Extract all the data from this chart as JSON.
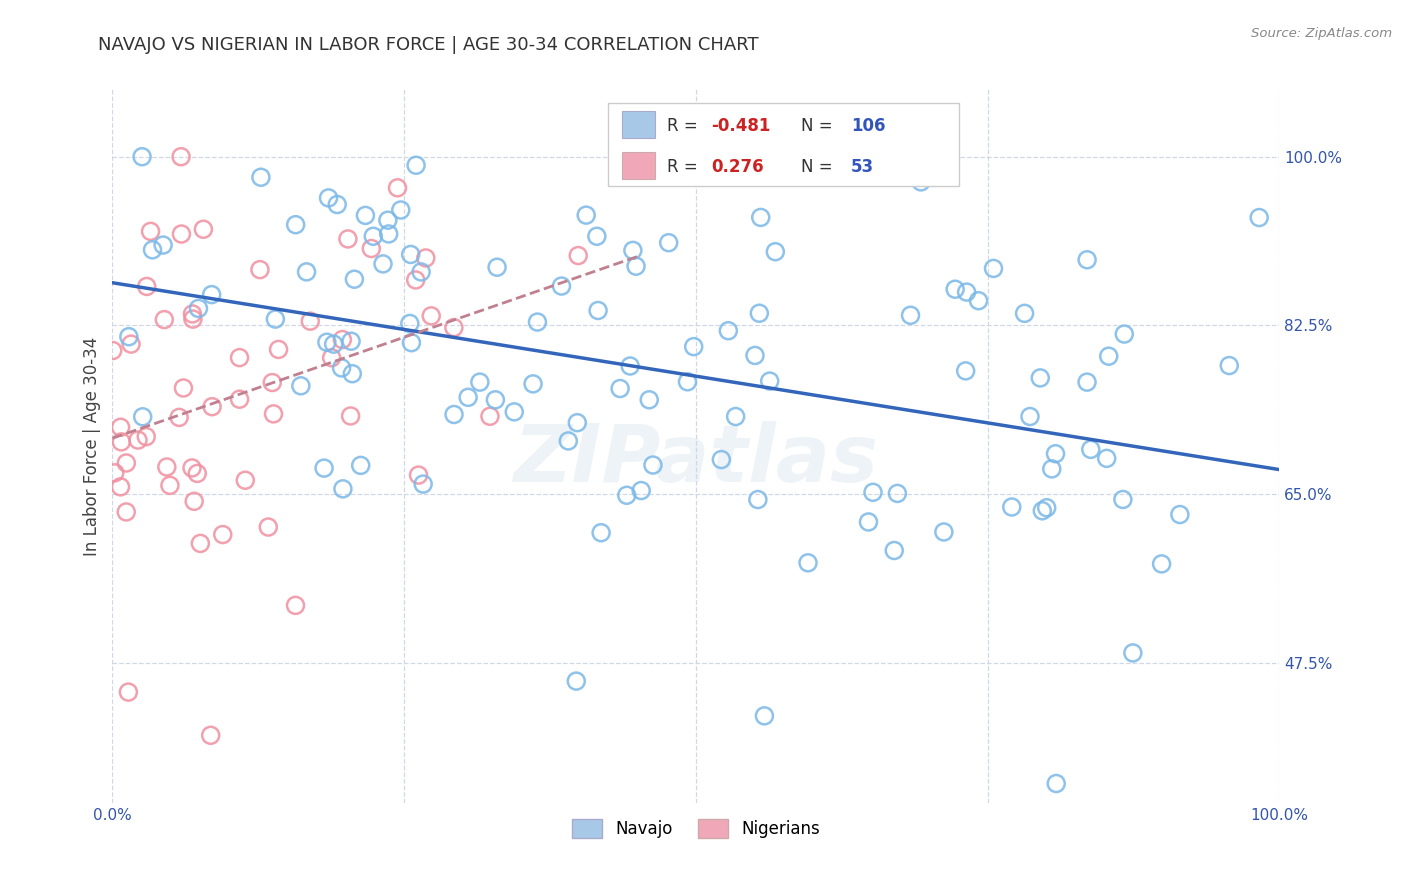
{
  "title": "NAVAJO VS NIGERIAN IN LABOR FORCE | AGE 30-34 CORRELATION CHART",
  "source_text": "Source: ZipAtlas.com",
  "ylabel": "In Labor Force | Age 30-34",
  "xlim": [
    0.0,
    1.0
  ],
  "ylim": [
    0.33,
    1.07
  ],
  "xtick_labels": [
    "0.0%",
    "100.0%"
  ],
  "ytick_labels": [
    "100.0%",
    "82.5%",
    "65.0%",
    "47.5%"
  ],
  "ytick_values": [
    1.0,
    0.825,
    0.65,
    0.475
  ],
  "background_color": "#ffffff",
  "grid_color": "#d0d8e8",
  "watermark": "ZIPatlas",
  "legend_navajo_color": "#a8c8e8",
  "legend_nigerian_color": "#f0a8b8",
  "navajo_dot_color": "#7ab8e8",
  "nigerian_dot_color": "#f090a0",
  "navajo_line_color": "#3366bb",
  "nigerian_line_color": "#cc4466",
  "navajo_R": -0.481,
  "navajo_N": 106,
  "nigerian_R": 0.276,
  "nigerian_N": 53,
  "title_fontsize": 13,
  "tick_fontsize": 11,
  "ylabel_fontsize": 12
}
